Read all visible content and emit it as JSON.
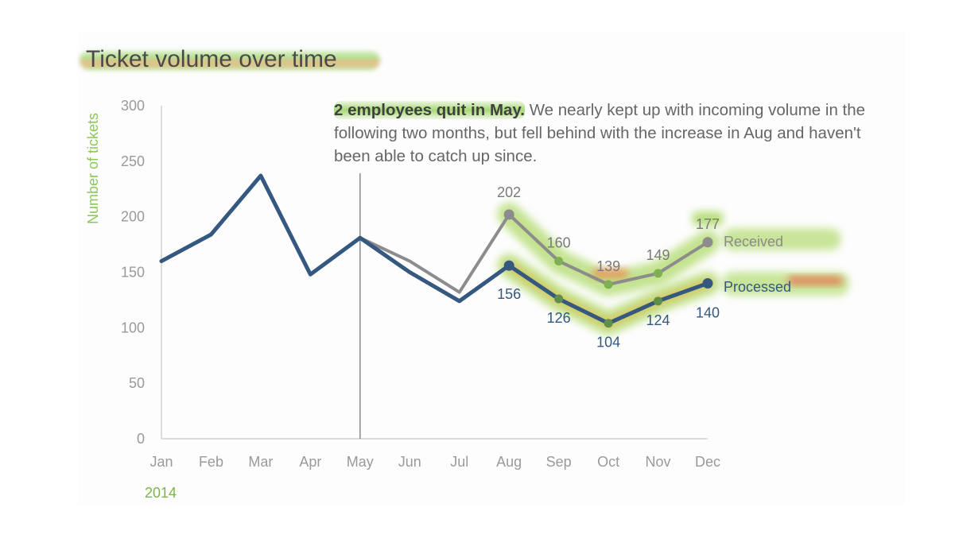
{
  "chart_data": {
    "type": "line",
    "title": "Ticket volume over time",
    "annotation_bold": "2 employees quit in May.",
    "annotation_text": " We nearly kept up with incoming volume in the following two months, but fell behind with the increase in Aug and haven't been able to catch up since.",
    "ylabel": "Number of tickets",
    "xlabel_year": "2014",
    "ylim": [
      0,
      300
    ],
    "yticks": [
      0,
      50,
      100,
      150,
      200,
      250,
      300
    ],
    "categories": [
      "Jan",
      "Feb",
      "Mar",
      "Apr",
      "May",
      "Jun",
      "Jul",
      "Aug",
      "Sep",
      "Oct",
      "Nov",
      "Dec"
    ],
    "grid": false,
    "legend": "direct labels at line ends",
    "marker_line_category": "May",
    "series": [
      {
        "name": "Received",
        "color": "#8c8c8c",
        "values": [
          160,
          184,
          237,
          148,
          181,
          160,
          132,
          202,
          160,
          139,
          149,
          177
        ],
        "labels": {
          "Aug": "202",
          "Sep": "160",
          "Oct": "139",
          "Nov": "149",
          "Dec": "177"
        }
      },
      {
        "name": "Processed",
        "color": "#34587f",
        "values": [
          160,
          184,
          237,
          148,
          181,
          150,
          124,
          156,
          126,
          104,
          124,
          140
        ],
        "labels": {
          "Aug": "156",
          "Sep": "126",
          "Oct": "104",
          "Nov": "124",
          "Dec": "140"
        }
      }
    ]
  }
}
